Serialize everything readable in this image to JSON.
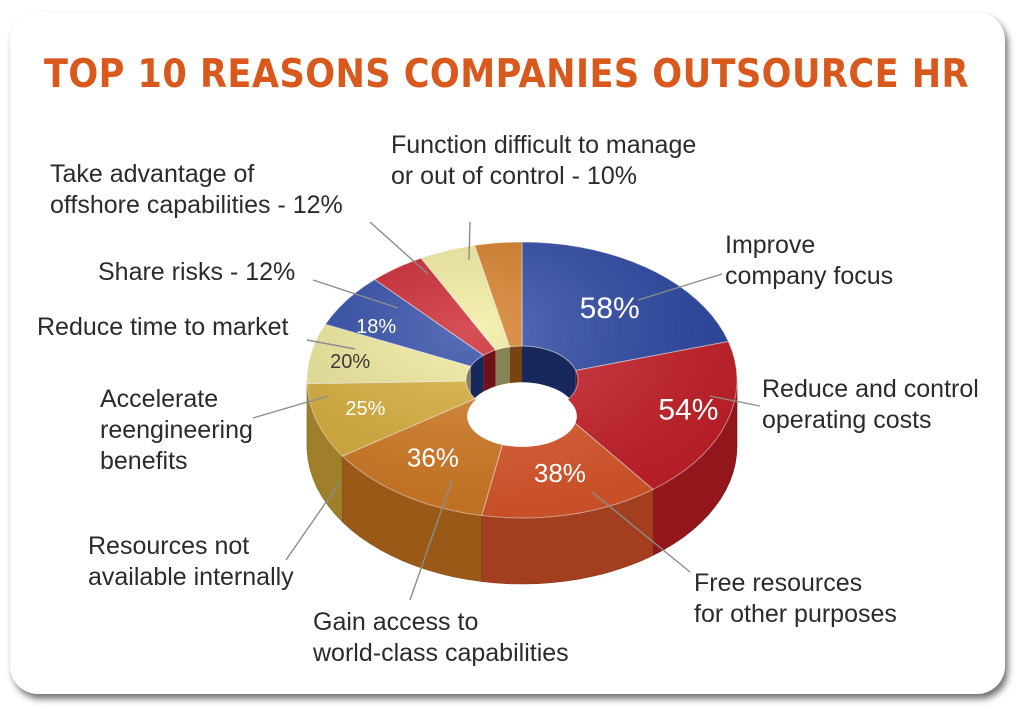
{
  "title": "TOP 10 REASONS COMPANIES OUTSOURCE HR",
  "chart_data": {
    "type": "pie",
    "title": "TOP 10 REASONS COMPANIES OUTSOURCE HR",
    "slices": [
      {
        "label": "Improve company focus",
        "value": 58,
        "value_label": "58%",
        "color": "#2b47a6"
      },
      {
        "label": "Reduce and control operating costs",
        "value": 54,
        "value_label": "54%",
        "color": "#cc1f28"
      },
      {
        "label": "Free resources for other purposes",
        "value": 38,
        "value_label": "38%",
        "color": "#e2582a"
      },
      {
        "label": "Gain access to world-class capabilities",
        "value": 36,
        "value_label": "36%",
        "color": "#d77c22"
      },
      {
        "label": "Resources not available internally",
        "value": 25,
        "value_label": "25%",
        "color": "#ddb13a"
      },
      {
        "label": "Accelerate reengineering benefits",
        "value": 20,
        "value_label": "20%",
        "color": "#f3ec9c"
      },
      {
        "label": "Reduce time to market",
        "value": 18,
        "value_label": "18%",
        "color": "#2b47a6"
      },
      {
        "label": "Share risks",
        "value": 12,
        "value_label": "12%",
        "color": "#cc1f28"
      },
      {
        "label": "Take advantage of offshore capabilities",
        "value": 12,
        "value_label": "12%",
        "color": "#f4ee9e"
      },
      {
        "label": "Function difficult to manage or out of control",
        "value": 10,
        "value_label": "10%",
        "color": "#d77c22"
      }
    ]
  },
  "callouts": {
    "improve": "Improve\ncompany focus",
    "reduce_costs": "Reduce and control\noperating costs",
    "free": "Free resources\nfor other purposes",
    "gain": "Gain access to\nworld-class capabilities",
    "resources": "Resources not\navailable internally",
    "accelerate": "Accelerate\nreengineering\nbenefits",
    "time": "Reduce time to market",
    "share": "Share risks - 12%",
    "offshore": "Take advantage of\noffshore capabilities - 12%",
    "function": "Function difficult to manage\nor out of control - 10%"
  }
}
